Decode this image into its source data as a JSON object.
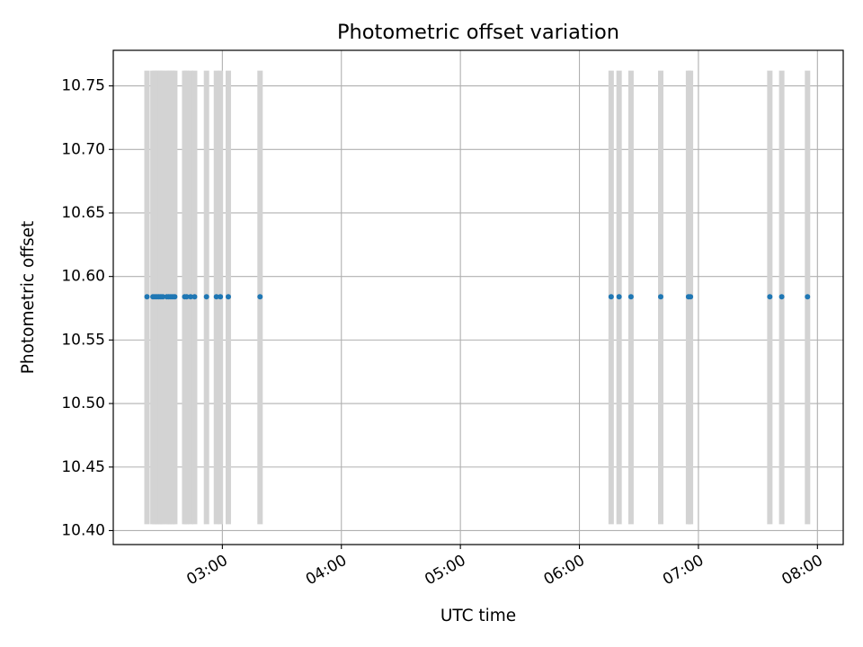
{
  "chart_data": {
    "type": "scatter",
    "title": "Photometric offset variation",
    "xlabel": "UTC time",
    "ylabel": "Photometric offset",
    "xlim": [
      "02:05",
      "08:13"
    ],
    "ylim": [
      10.389,
      10.778
    ],
    "x_ticks": [
      "03:00",
      "04:00",
      "05:00",
      "06:00",
      "07:00",
      "08:00"
    ],
    "y_ticks": [
      "10.40",
      "10.45",
      "10.50",
      "10.55",
      "10.60",
      "10.65",
      "10.70",
      "10.75"
    ],
    "grid": true,
    "exposure_band": [
      10.405,
      10.762
    ],
    "colors": {
      "points": "#1f77b4",
      "bands": "#d3d3d3",
      "grid": "#b0b0b0"
    },
    "points": [
      {
        "x": "02:22",
        "y": 10.584
      },
      {
        "x": "02:25",
        "y": 10.584
      },
      {
        "x": "02:26",
        "y": 10.584
      },
      {
        "x": "02:27",
        "y": 10.584
      },
      {
        "x": "02:28",
        "y": 10.584
      },
      {
        "x": "02:29",
        "y": 10.584
      },
      {
        "x": "02:30",
        "y": 10.584
      },
      {
        "x": "02:32",
        "y": 10.584
      },
      {
        "x": "02:33",
        "y": 10.584
      },
      {
        "x": "02:34",
        "y": 10.584
      },
      {
        "x": "02:35",
        "y": 10.584
      },
      {
        "x": "02:36",
        "y": 10.584
      },
      {
        "x": "02:41",
        "y": 10.584
      },
      {
        "x": "02:42",
        "y": 10.584
      },
      {
        "x": "02:44",
        "y": 10.584
      },
      {
        "x": "02:46",
        "y": 10.584
      },
      {
        "x": "02:52",
        "y": 10.584
      },
      {
        "x": "02:57",
        "y": 10.584
      },
      {
        "x": "02:59",
        "y": 10.584
      },
      {
        "x": "03:03",
        "y": 10.584
      },
      {
        "x": "03:19",
        "y": 10.584
      },
      {
        "x": "06:16",
        "y": 10.584
      },
      {
        "x": "06:20",
        "y": 10.584
      },
      {
        "x": "06:26",
        "y": 10.584
      },
      {
        "x": "06:41",
        "y": 10.584
      },
      {
        "x": "06:55",
        "y": 10.584
      },
      {
        "x": "06:56",
        "y": 10.584
      },
      {
        "x": "07:36",
        "y": 10.584
      },
      {
        "x": "07:42",
        "y": 10.584
      },
      {
        "x": "07:55",
        "y": 10.584
      }
    ]
  }
}
